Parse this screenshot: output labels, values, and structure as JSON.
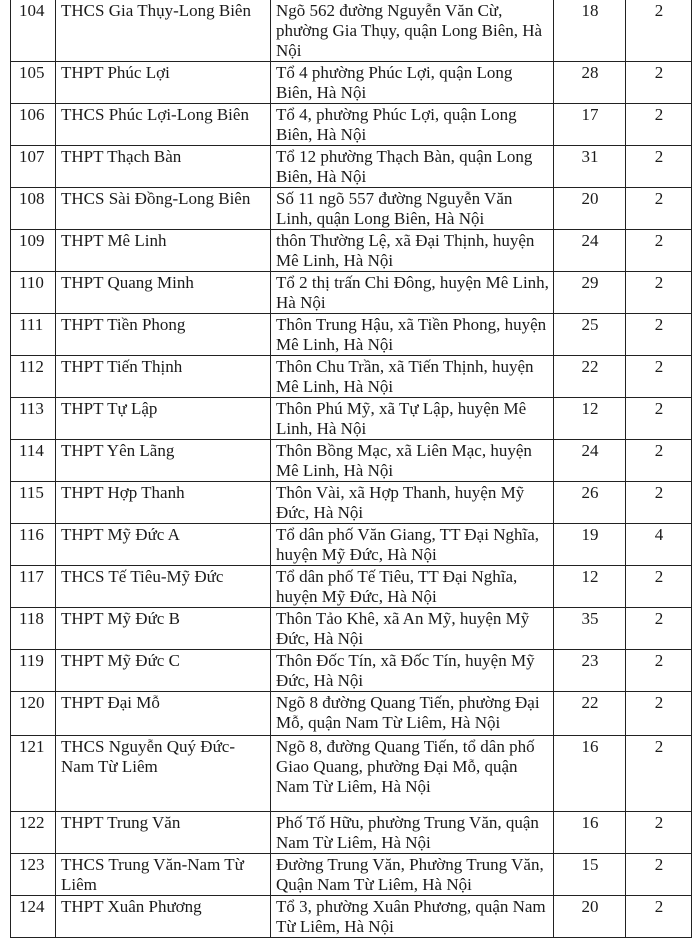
{
  "table": {
    "rows": [
      [
        "104",
        "THCS Gia Thụy-Long Biên",
        "Ngõ 562 đường Nguyễn Văn Cừ, phường Gia Thụy, quận Long Biên, Hà Nội",
        "18",
        "2"
      ],
      [
        "105",
        "THPT Phúc Lợi",
        "Tổ 4 phường Phúc Lợi, quận Long Biên, Hà Nội",
        "28",
        "2"
      ],
      [
        "106",
        "THCS Phúc Lợi-Long Biên",
        "Tổ 4, phường Phúc Lợi, quận Long Biên, Hà Nội",
        "17",
        "2"
      ],
      [
        "107",
        "THPT Thạch Bàn",
        "Tổ 12 phường Thạch Bàn, quận Long Biên, Hà Nội",
        "31",
        "2"
      ],
      [
        "108",
        "THCS Sài Đồng-Long Biên",
        "Số 11 ngõ 557 đường Nguyễn Văn Linh, quận Long Biên, Hà Nội",
        "20",
        "2"
      ],
      [
        "109",
        "THPT Mê Linh",
        "thôn Thường Lệ, xã Đại Thịnh, huyện Mê Linh, Hà Nội",
        "24",
        "2"
      ],
      [
        "110",
        "THPT Quang Minh",
        "Tổ 2 thị trấn Chi Đông, huyện Mê Linh, Hà Nội",
        "29",
        "2"
      ],
      [
        "111",
        "THPT Tiền Phong",
        "Thôn Trung Hậu, xã Tiền Phong, huyện Mê Linh, Hà Nội",
        "25",
        "2"
      ],
      [
        "112",
        "THPT Tiến Thịnh",
        "Thôn Chu Trần, xã Tiến Thịnh, huyện Mê Linh, Hà Nội",
        "22",
        "2"
      ],
      [
        "113",
        "THPT Tự Lập",
        "Thôn Phú Mỹ, xã Tự Lập, huyện Mê Linh, Hà Nội",
        "12",
        "2"
      ],
      [
        "114",
        "THPT Yên Lãng",
        "Thôn Bồng Mạc, xã Liên Mạc, huyện Mê Linh, Hà Nội",
        "24",
        "2"
      ],
      [
        "115",
        "THPT Hợp Thanh",
        "Thôn Vài, xã Hợp Thanh, huyện Mỹ Đức, Hà Nội",
        "26",
        "2"
      ],
      [
        "116",
        "THPT Mỹ Đức A",
        "Tổ dân phố Văn Giang, TT Đại Nghĩa, huyện Mỹ Đức, Hà Nội",
        "19",
        "4"
      ],
      [
        "117",
        "THCS Tế Tiêu-Mỹ Đức",
        "Tổ dân phố Tế Tiêu, TT Đại Nghĩa, huyện Mỹ Đức, Hà Nội",
        "12",
        "2"
      ],
      [
        "118",
        "THPT Mỹ Đức B",
        "Thôn Tảo Khê, xã An Mỹ, huyện Mỹ Đức, Hà Nội",
        "35",
        "2"
      ],
      [
        "119",
        "THPT Mỹ Đức C",
        "Thôn Đốc Tín, xã Đốc Tín, huyện Mỹ Đức, Hà Nội",
        "23",
        "2"
      ],
      [
        "120",
        "THPT Đại Mỗ",
        "Ngõ 8 đường Quang Tiến, phường Đại Mỗ, quận Nam Từ Liêm, Hà Nội",
        "22",
        "2"
      ],
      [
        "121",
        "THCS Nguyễn Quý Đức-Nam Từ Liêm",
        "Ngõ 8, đường Quang Tiến, tổ dân phố Giao Quang, phường Đại Mỗ, quận Nam Từ Liêm, Hà Nội",
        "16",
        "2"
      ],
      [
        "122",
        "THPT Trung Văn",
        "Phố Tố Hữu, phường Trung Văn, quận Nam Từ Liêm, Hà Nội",
        "16",
        "2"
      ],
      [
        "123",
        "THCS Trung Văn-Nam Từ Liêm",
        "Đường Trung Văn, Phường Trung Văn, Quận Nam Từ Liêm, Hà Nội",
        "15",
        "2"
      ],
      [
        "124",
        "THPT Xuân Phương",
        "Tổ 3, phường Xuân Phương, quận Nam Từ Liêm, Hà Nội",
        "20",
        "2"
      ]
    ]
  }
}
